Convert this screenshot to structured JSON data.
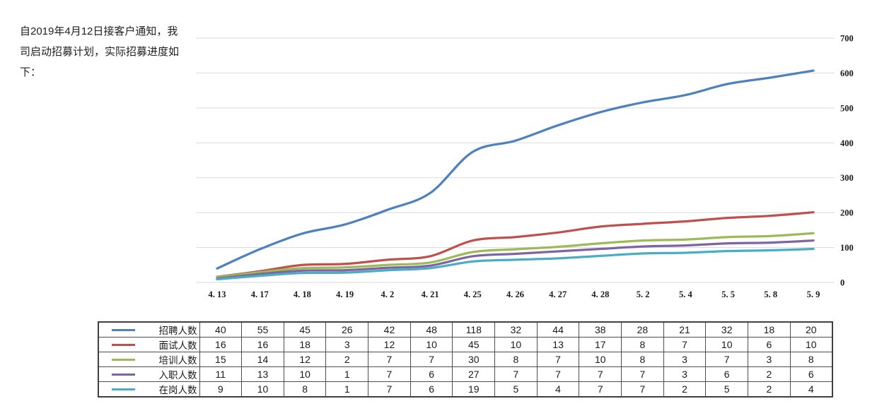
{
  "intro": {
    "lines": [
      "自2019年4月12日接客户通知，我",
      "司启动招募计划，实际招募进度如",
      "下："
    ]
  },
  "chart_data": {
    "type": "line",
    "smooth": true,
    "plot_mode": "cumulative",
    "grid": "horizontal",
    "legend_position": "table-left",
    "x_labels": [
      "4. 13",
      "4. 17",
      "4. 18",
      "4. 19",
      "4. 2",
      "4. 21",
      "4. 25",
      "4. 26",
      "4. 27",
      "4. 28",
      "5. 2",
      "5. 4",
      "5. 5",
      "5. 8",
      "5. 9"
    ],
    "y_ticks": [
      0,
      100,
      200,
      300,
      400,
      500,
      600,
      700
    ],
    "ylim": [
      0,
      700
    ],
    "gridline_color": "#d9d9d9",
    "series": [
      {
        "id": "recruit",
        "name": "招聘人数",
        "color": "#4F81BD",
        "values": [
          40,
          55,
          45,
          26,
          42,
          48,
          118,
          32,
          44,
          38,
          28,
          21,
          32,
          18,
          20
        ]
      },
      {
        "id": "interview",
        "name": "面试人数",
        "color": "#C0504D",
        "values": [
          16,
          16,
          18,
          3,
          12,
          10,
          45,
          10,
          13,
          17,
          8,
          7,
          10,
          6,
          10
        ]
      },
      {
        "id": "training",
        "name": "培训人数",
        "color": "#9BBB59",
        "values": [
          15,
          14,
          12,
          2,
          7,
          7,
          30,
          8,
          7,
          10,
          8,
          3,
          7,
          3,
          8
        ]
      },
      {
        "id": "hired",
        "name": "入职人数",
        "color": "#8064A2",
        "values": [
          11,
          13,
          10,
          1,
          7,
          6,
          27,
          7,
          7,
          7,
          7,
          3,
          6,
          2,
          6
        ]
      },
      {
        "id": "onduty",
        "name": "在岗人数",
        "color": "#4BACC6",
        "values": [
          9,
          10,
          8,
          1,
          7,
          6,
          19,
          5,
          4,
          7,
          7,
          2,
          5,
          2,
          4
        ]
      }
    ]
  }
}
